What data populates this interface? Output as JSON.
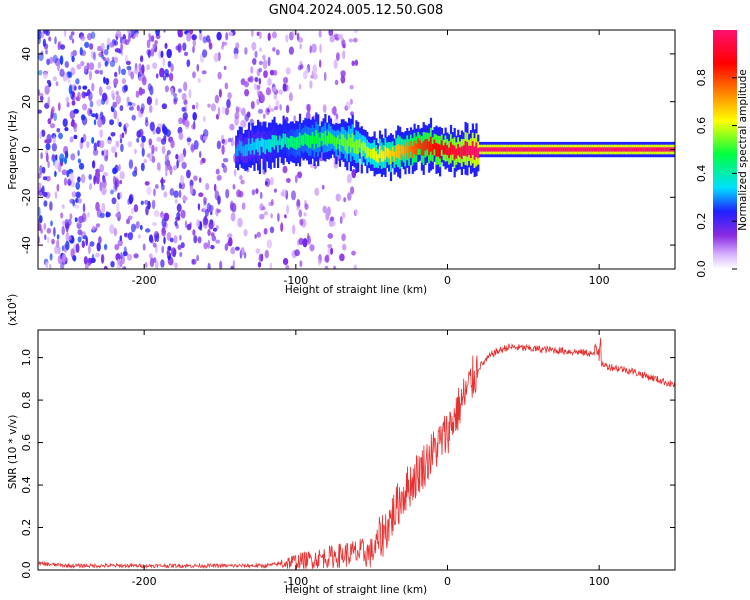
{
  "title": "GN04.2024.005.12.50.G08",
  "chart_data": [
    {
      "type": "heatmap",
      "xlabel": "Height of straight line (km)",
      "ylabel": "Frequency (Hz)",
      "xlim": [
        -270,
        150
      ],
      "ylim": [
        -50,
        50
      ],
      "x_ticks": [
        -200,
        -100,
        0,
        100
      ],
      "y_ticks": [
        -40,
        -20,
        0,
        20,
        40
      ],
      "colorbar": {
        "label": "Normalized spectral amplitude",
        "range": [
          0,
          1
        ],
        "ticks": [
          0.0,
          0.2,
          0.4,
          0.6,
          0.8
        ],
        "colors": [
          "#ffffff",
          "#d9b3ff",
          "#8a2be2",
          "#2020ff",
          "#00e0ff",
          "#00ff40",
          "#ffff00",
          "#ff8000",
          "#ff0000",
          "#ff1070"
        ]
      },
      "ridge": {
        "x": [
          -140,
          -120,
          -100,
          -80,
          -60,
          -50,
          -40,
          -30,
          -20,
          -10,
          0,
          10,
          20,
          150
        ],
        "y": [
          0,
          2,
          4,
          4,
          2,
          -3,
          -2,
          -1,
          1,
          1,
          0,
          -1,
          0,
          0
        ],
        "amplitude": [
          0.3,
          0.35,
          0.45,
          0.5,
          0.55,
          0.6,
          0.65,
          0.7,
          0.8,
          0.85,
          0.9,
          0.95,
          1.0,
          1.0
        ]
      },
      "noise_region": {
        "x_range": [
          -270,
          -60
        ],
        "amplitude_range": [
          0.05,
          0.3
        ]
      }
    },
    {
      "type": "line",
      "xlabel": "Height of straight line (km)",
      "ylabel": "SNR (10 * v/v)",
      "y_multiplier": "(x10",
      "y_multiplier_exp": "4",
      "y_multiplier_close": ")",
      "xlim": [
        -270,
        150
      ],
      "ylim": [
        0,
        1.13
      ],
      "x_ticks": [
        -200,
        -100,
        0,
        100
      ],
      "y_ticks": [
        0.0,
        0.2,
        0.4,
        0.6,
        0.8,
        1.0
      ],
      "color": "#e83030",
      "series": [
        {
          "x": [
            -270,
            -250,
            -200,
            -150,
            -120,
            -100,
            -80,
            -60,
            -50,
            -40,
            -30,
            -20,
            -10,
            0,
            10,
            20,
            30,
            40,
            60,
            80,
            95,
            100,
            105,
            120,
            150
          ],
          "y": [
            0.03,
            0.02,
            0.02,
            0.02,
            0.02,
            0.04,
            0.06,
            0.08,
            0.08,
            0.2,
            0.35,
            0.45,
            0.55,
            0.65,
            0.8,
            0.95,
            1.02,
            1.05,
            1.04,
            1.03,
            1.02,
            0.98,
            0.96,
            0.94,
            0.87
          ]
        }
      ]
    }
  ]
}
